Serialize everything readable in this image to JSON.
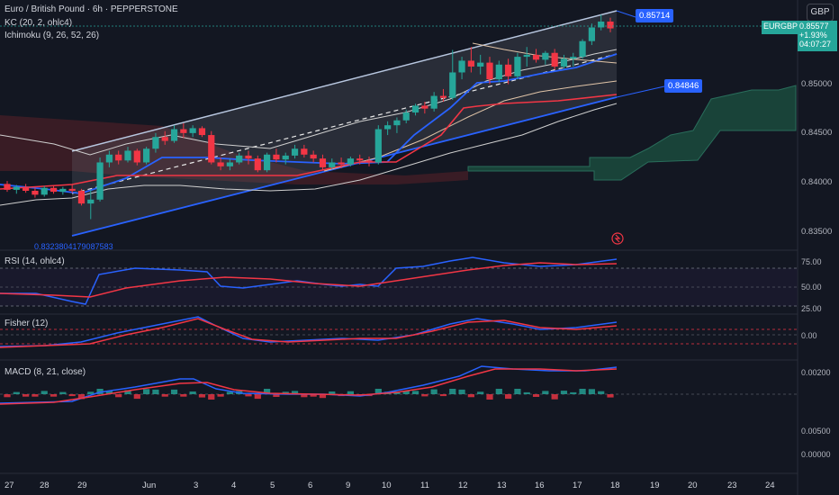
{
  "header": {
    "symbol_title": "Euro / British Pound · 6h · PEPPERSTONE",
    "kc_title": "KC (20, 2, ohlc4)",
    "ichimoku_title": "Ichimoku (9, 26, 52, 26)",
    "currency": "GBP"
  },
  "price_panel": {
    "symbol_tag": "EURGBP",
    "last_price": "0.85577",
    "change": "+1.93%",
    "countdown": "04:07:27",
    "upper_level_label": "0.85714",
    "lower_level_label": "0.84846",
    "regression_label": "0.8323804179087583",
    "y_ticks": [
      "0.85000",
      "0.84500",
      "0.84000",
      "0.83500"
    ],
    "y_tick_values": [
      0.85,
      0.845,
      0.84,
      0.835
    ],
    "colors": {
      "up": "#26a69a",
      "down": "#f23645",
      "channel": "#2962ff",
      "accent": "#2962ff"
    }
  },
  "rsi_panel": {
    "title": "RSI (14, ohlc4)",
    "y_ticks": [
      "75.00",
      "50.00",
      "25.00"
    ]
  },
  "fisher_panel": {
    "title": "Fisher (12)",
    "y_ticks": [
      "0.00"
    ]
  },
  "macd_panel": {
    "title": "MACD (8, 21, close)",
    "y_ticks": [
      "0.00200",
      "0.00500",
      "0.00000"
    ]
  },
  "x_axis": {
    "labels": [
      "27",
      "28",
      "29",
      "Jun",
      "3",
      "4",
      "5",
      "6",
      "9",
      "10",
      "11",
      "12",
      "13",
      "16",
      "17",
      "18",
      "19",
      "20",
      "23",
      "24"
    ]
  },
  "chart_data": {
    "type": "candlestick",
    "symbol": "EURGBP",
    "timeframe": "6h",
    "ylim": [
      0.8345,
      0.8575
    ],
    "candles": [
      [
        0.8398,
        0.8401,
        0.839,
        0.8392
      ],
      [
        0.8392,
        0.8397,
        0.8388,
        0.8395
      ],
      [
        0.8395,
        0.8398,
        0.8389,
        0.8391
      ],
      [
        0.8391,
        0.8394,
        0.8384,
        0.8387
      ],
      [
        0.8387,
        0.8396,
        0.8385,
        0.8394
      ],
      [
        0.8394,
        0.8396,
        0.8388,
        0.839
      ],
      [
        0.839,
        0.8395,
        0.8387,
        0.8393
      ],
      [
        0.8393,
        0.8397,
        0.8389,
        0.8391
      ],
      [
        0.8391,
        0.8393,
        0.8376,
        0.8378
      ],
      [
        0.8378,
        0.8392,
        0.8362,
        0.8382
      ],
      [
        0.8382,
        0.8425,
        0.838,
        0.842
      ],
      [
        0.842,
        0.8432,
        0.8415,
        0.8428
      ],
      [
        0.8428,
        0.8432,
        0.8418,
        0.8422
      ],
      [
        0.8422,
        0.8436,
        0.842,
        0.8432
      ],
      [
        0.8432,
        0.8434,
        0.8417,
        0.842
      ],
      [
        0.842,
        0.8436,
        0.8418,
        0.8434
      ],
      [
        0.8434,
        0.845,
        0.843,
        0.8446
      ],
      [
        0.8446,
        0.8452,
        0.8438,
        0.8442
      ],
      [
        0.8442,
        0.8458,
        0.844,
        0.8454
      ],
      [
        0.8454,
        0.846,
        0.8445,
        0.845
      ],
      [
        0.845,
        0.8458,
        0.8446,
        0.8455
      ],
      [
        0.8455,
        0.8457,
        0.8446,
        0.8448
      ],
      [
        0.8448,
        0.8452,
        0.8418,
        0.842
      ],
      [
        0.842,
        0.8425,
        0.8412,
        0.8416
      ],
      [
        0.8416,
        0.8424,
        0.8412,
        0.842
      ],
      [
        0.842,
        0.843,
        0.8418,
        0.8427
      ],
      [
        0.8427,
        0.8432,
        0.8418,
        0.8424
      ],
      [
        0.8424,
        0.8427,
        0.841,
        0.8412
      ],
      [
        0.8412,
        0.843,
        0.841,
        0.8428
      ],
      [
        0.8428,
        0.8434,
        0.842,
        0.8423
      ],
      [
        0.8423,
        0.843,
        0.8418,
        0.8427
      ],
      [
        0.8427,
        0.8438,
        0.8424,
        0.8434
      ],
      [
        0.8434,
        0.8438,
        0.8425,
        0.8428
      ],
      [
        0.8428,
        0.8432,
        0.842,
        0.8424
      ],
      [
        0.8424,
        0.8428,
        0.8412,
        0.8415
      ],
      [
        0.8415,
        0.8424,
        0.8413,
        0.842
      ],
      [
        0.842,
        0.8425,
        0.8414,
        0.8418
      ],
      [
        0.8418,
        0.8426,
        0.8416,
        0.8424
      ],
      [
        0.8424,
        0.8428,
        0.8418,
        0.8422
      ],
      [
        0.8422,
        0.8426,
        0.8416,
        0.842
      ],
      [
        0.842,
        0.8458,
        0.8418,
        0.8454
      ],
      [
        0.8454,
        0.8462,
        0.8448,
        0.8458
      ],
      [
        0.8458,
        0.8466,
        0.845,
        0.8463
      ],
      [
        0.8463,
        0.8474,
        0.846,
        0.8471
      ],
      [
        0.8471,
        0.848,
        0.8468,
        0.8478
      ],
      [
        0.8478,
        0.8482,
        0.847,
        0.8475
      ],
      [
        0.8475,
        0.8492,
        0.8472,
        0.8488
      ],
      [
        0.8488,
        0.8495,
        0.8482,
        0.8486
      ],
      [
        0.8486,
        0.8535,
        0.8484,
        0.8512
      ],
      [
        0.8512,
        0.8528,
        0.8505,
        0.8524
      ],
      [
        0.8524,
        0.8538,
        0.8512,
        0.8518
      ],
      [
        0.8518,
        0.853,
        0.851,
        0.8522
      ],
      [
        0.8522,
        0.8528,
        0.85,
        0.8505
      ],
      [
        0.8505,
        0.8524,
        0.8502,
        0.852
      ],
      [
        0.852,
        0.8526,
        0.85,
        0.8508
      ],
      [
        0.8508,
        0.8532,
        0.8505,
        0.8528
      ],
      [
        0.8528,
        0.8538,
        0.8518,
        0.853
      ],
      [
        0.853,
        0.8536,
        0.8522,
        0.8525
      ],
      [
        0.8525,
        0.8534,
        0.852,
        0.8532
      ],
      [
        0.8532,
        0.8536,
        0.8515,
        0.8518
      ],
      [
        0.8518,
        0.853,
        0.8516,
        0.8526
      ],
      [
        0.8526,
        0.8532,
        0.8518,
        0.8528
      ],
      [
        0.8528,
        0.8546,
        0.8526,
        0.8544
      ],
      [
        0.8544,
        0.8562,
        0.854,
        0.8558
      ],
      [
        0.8558,
        0.8571,
        0.8555,
        0.8564
      ],
      [
        0.8564,
        0.8568,
        0.8553,
        0.8557
      ]
    ]
  }
}
